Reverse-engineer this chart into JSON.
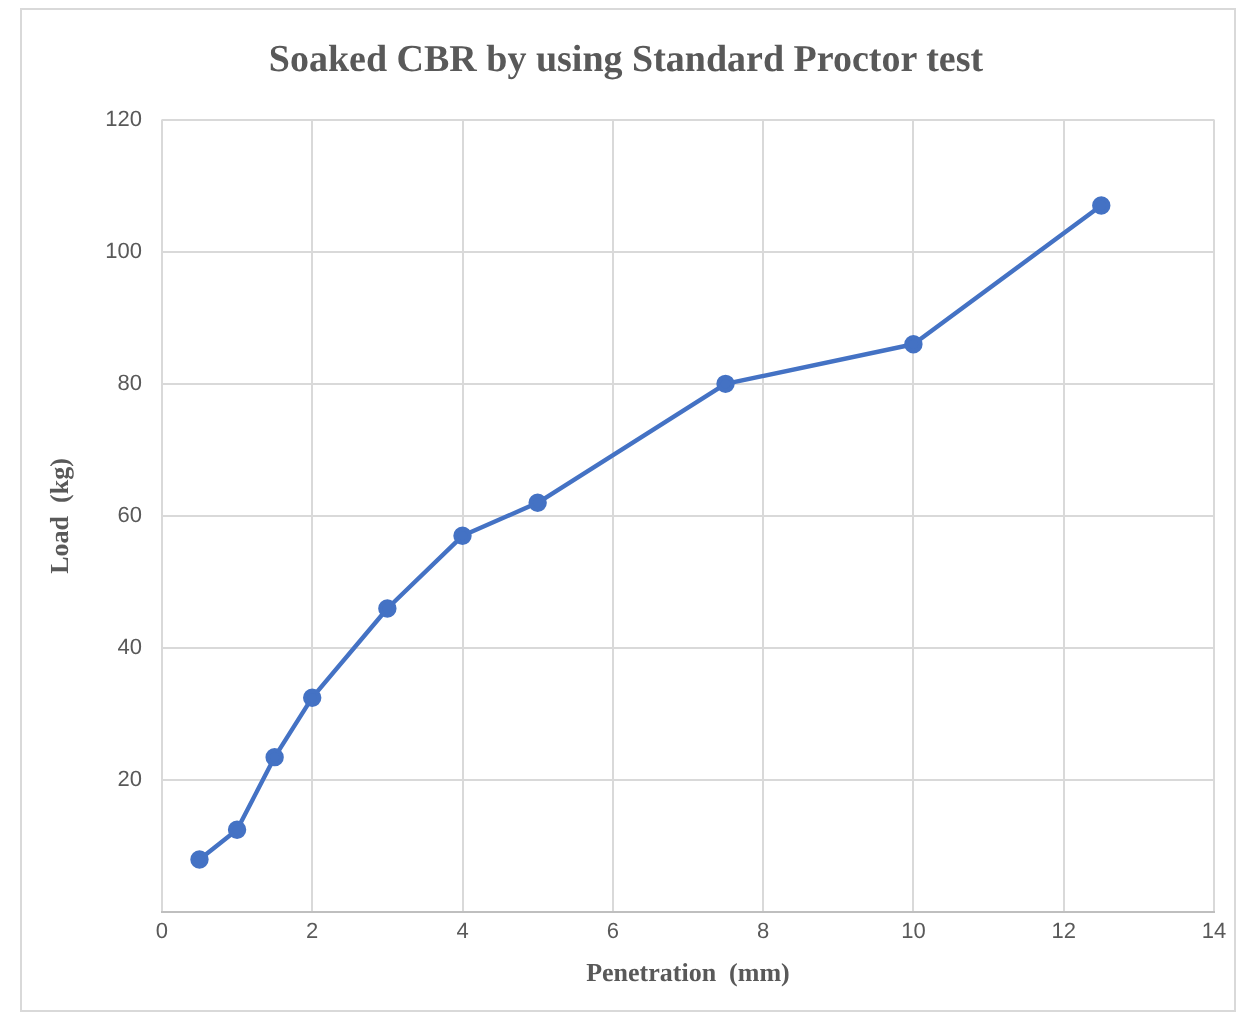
{
  "chart_data": {
    "type": "line",
    "title": "Soaked CBR by using Standard Proctor test",
    "xlabel": "Penetration  (mm)",
    "ylabel": "Load  (kg)",
    "x": [
      0.5,
      1,
      1.5,
      2,
      3,
      4,
      5,
      7.5,
      10,
      12.5
    ],
    "series": [
      {
        "color": "#4472c4",
        "values": [
          8,
          12.5,
          23.5,
          32.5,
          46,
          57,
          62,
          80,
          86,
          107
        ]
      }
    ],
    "xlim": [
      0,
      14
    ],
    "xticks": [
      0,
      2,
      4,
      6,
      8,
      10,
      12,
      14
    ],
    "ylim": [
      0,
      120
    ],
    "yticks": [
      {
        "value": 0,
        "label": null
      },
      20,
      40,
      60,
      80,
      100,
      120
    ],
    "grid": true,
    "legend": false,
    "marker": "circle",
    "line_style": "solid"
  }
}
